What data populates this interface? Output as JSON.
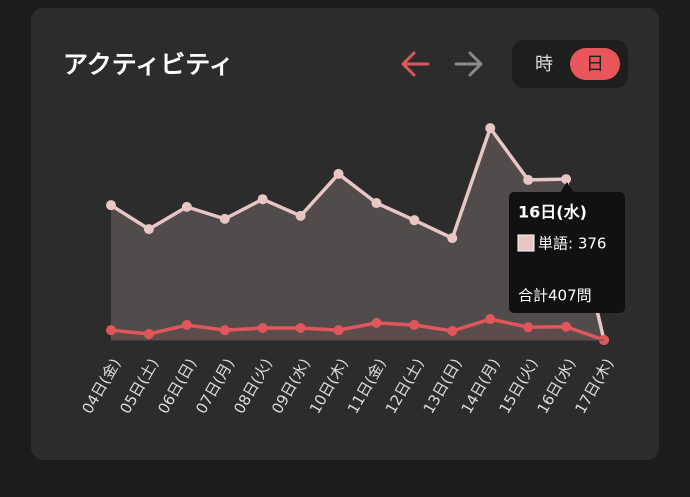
{
  "header": {
    "title": "アクティビティ",
    "toggle": [
      "時",
      "日"
    ]
  },
  "chart_data": {
    "type": "area",
    "categories": [
      "04日(金)",
      "05日(土)",
      "06日(日)",
      "07日(月)",
      "08日(火)",
      "09日(水)",
      "10日(木)",
      "11日(金)",
      "12日(土)",
      "13日(日)",
      "14日(月)",
      "15日(火)",
      "16日(水)",
      "17日(木)"
    ],
    "series": [
      {
        "name": "単語",
        "color": "#e8c6c6",
        "values": [
          315,
          259,
          311,
          283,
          329,
          290,
          388,
          320,
          280,
          238,
          495,
          374,
          376,
          0
        ]
      },
      {
        "color": "#e0575b",
        "values": [
          23,
          14,
          35,
          23,
          28,
          28,
          23,
          40,
          35,
          21,
          49,
          30,
          31,
          0
        ]
      }
    ],
    "ylim": [
      0,
      500
    ],
    "tooltip": {
      "title": "16日(水)",
      "label": "単語: 376",
      "total": "合計407問"
    }
  }
}
